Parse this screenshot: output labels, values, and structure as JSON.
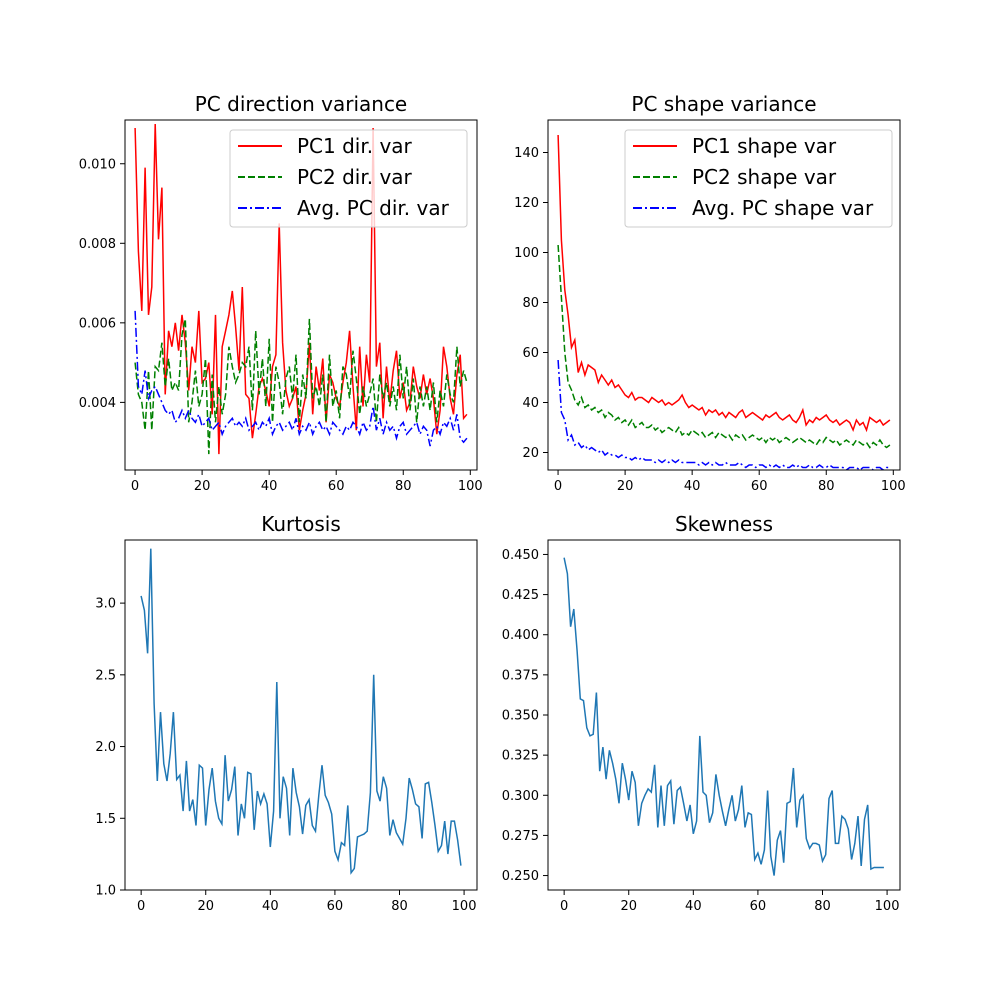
{
  "chart_data": [
    {
      "type": "line",
      "title": "PC direction variance",
      "xlabel": "",
      "ylabel": "",
      "xlim": [
        -3,
        102
      ],
      "ylim": [
        0.0023,
        0.0111
      ],
      "xticks": [
        0,
        20,
        40,
        60,
        80,
        100
      ],
      "yticks": [
        0.004,
        0.006,
        0.008,
        0.01
      ],
      "ytick_labels": [
        "0.004",
        "0.006",
        "0.008",
        "0.010"
      ],
      "grid": false,
      "legend": "upper right",
      "series": [
        {
          "name": "PC1 dir. var",
          "color": "#ff0000",
          "linestyle": "solid",
          "values": [
            0.0109,
            0.0078,
            0.0063,
            0.0099,
            0.0062,
            0.0069,
            0.011,
            0.0081,
            0.0094,
            0.0042,
            0.0058,
            0.0054,
            0.006,
            0.0053,
            0.0062,
            0.0055,
            0.0043,
            0.0054,
            0.005,
            0.0063,
            0.0045,
            0.0046,
            0.005,
            0.0037,
            0.0062,
            0.0027,
            0.0054,
            0.0058,
            0.0062,
            0.0068,
            0.0059,
            0.0048,
            0.0069,
            0.0042,
            0.0041,
            0.0031,
            0.0037,
            0.0044,
            0.0046,
            0.0043,
            0.0039,
            0.0049,
            0.0052,
            0.0085,
            0.0055,
            0.0043,
            0.0039,
            0.0041,
            0.0044,
            0.0033,
            0.0038,
            0.0042,
            0.0055,
            0.0037,
            0.0049,
            0.0043,
            0.0051,
            0.0035,
            0.0047,
            0.0045,
            0.0041,
            0.0039,
            0.0045,
            0.005,
            0.0058,
            0.0044,
            0.0033,
            0.0054,
            0.0039,
            0.0052,
            0.0045,
            0.0109,
            0.0049,
            0.0055,
            0.0036,
            0.0049,
            0.004,
            0.0048,
            0.0053,
            0.0041,
            0.0045,
            0.0038,
            0.004,
            0.0049,
            0.0044,
            0.0041,
            0.0047,
            0.0042,
            0.0046,
            0.0041,
            0.0032,
            0.0038,
            0.0054,
            0.0049,
            0.0041,
            0.0037,
            0.0047,
            0.0052,
            0.0036,
            0.0037
          ]
        },
        {
          "name": "PC2 dir. var",
          "color": "#008000",
          "linestyle": "dashed",
          "values": [
            0.005,
            0.0042,
            0.004,
            0.0033,
            0.0048,
            0.0033,
            0.0049,
            0.0048,
            0.0055,
            0.0044,
            0.0051,
            0.0043,
            0.0045,
            0.0043,
            0.0057,
            0.0061,
            0.0035,
            0.004,
            0.0048,
            0.0039,
            0.0042,
            0.0051,
            0.0027,
            0.0047,
            0.0035,
            0.0044,
            0.0037,
            0.0042,
            0.0054,
            0.0049,
            0.0045,
            0.0047,
            0.005,
            0.0049,
            0.0054,
            0.0038,
            0.0058,
            0.0042,
            0.0051,
            0.0039,
            0.0056,
            0.0035,
            0.0049,
            0.0045,
            0.0037,
            0.0046,
            0.0049,
            0.0041,
            0.0052,
            0.0035,
            0.0047,
            0.0041,
            0.0061,
            0.0041,
            0.0044,
            0.0039,
            0.0047,
            0.0035,
            0.0052,
            0.0039,
            0.0043,
            0.0036,
            0.0049,
            0.0047,
            0.0041,
            0.0053,
            0.0046,
            0.0037,
            0.0044,
            0.0039,
            0.0042,
            0.0046,
            0.0035,
            0.0047,
            0.0041,
            0.0045,
            0.0039,
            0.0044,
            0.0038,
            0.0052,
            0.0041,
            0.0049,
            0.0038,
            0.0046,
            0.0035,
            0.0044,
            0.0039,
            0.0044,
            0.0038,
            0.0045,
            0.0035,
            0.0043,
            0.0039,
            0.0047,
            0.0042,
            0.004,
            0.0054,
            0.0044,
            0.0048,
            0.0045
          ]
        },
        {
          "name": "Avg. PC dir. var",
          "color": "#0000ff",
          "linestyle": "dashdot",
          "values": [
            0.0063,
            0.0044,
            0.0042,
            0.0048,
            0.0041,
            0.0043,
            0.0044,
            0.0042,
            0.004,
            0.0038,
            0.0037,
            0.0038,
            0.0035,
            0.0036,
            0.0038,
            0.0036,
            0.0038,
            0.0036,
            0.0035,
            0.0037,
            0.0034,
            0.0035,
            0.0036,
            0.0033,
            0.0034,
            0.0035,
            0.0032,
            0.0034,
            0.0035,
            0.0036,
            0.0034,
            0.0035,
            0.0034,
            0.0036,
            0.0033,
            0.0034,
            0.0035,
            0.0033,
            0.0035,
            0.0034,
            0.0036,
            0.0032,
            0.0034,
            0.0035,
            0.0033,
            0.0034,
            0.0035,
            0.0033,
            0.0036,
            0.0032,
            0.0034,
            0.0033,
            0.0035,
            0.0032,
            0.0034,
            0.0035,
            0.0033,
            0.0034,
            0.0032,
            0.0035,
            0.0034,
            0.0033,
            0.0032,
            0.0034,
            0.0033,
            0.0035,
            0.0034,
            0.0032,
            0.0035,
            0.0033,
            0.0034,
            0.0039,
            0.0033,
            0.0036,
            0.0032,
            0.0035,
            0.0033,
            0.0034,
            0.0031,
            0.0034,
            0.0035,
            0.0032,
            0.0033,
            0.0034,
            0.0035,
            0.0032,
            0.0034,
            0.0033,
            0.0029,
            0.0033,
            0.0034,
            0.0032,
            0.0035,
            0.0034,
            0.0036,
            0.0033,
            0.0037,
            0.0031,
            0.003,
            0.0031
          ]
        }
      ]
    },
    {
      "type": "line",
      "title": "PC shape variance",
      "xlabel": "",
      "ylabel": "",
      "xlim": [
        -3,
        102
      ],
      "ylim": [
        13,
        153
      ],
      "xticks": [
        0,
        20,
        40,
        60,
        80,
        100
      ],
      "yticks": [
        20,
        40,
        60,
        80,
        100,
        120,
        140
      ],
      "ytick_labels": [
        "20",
        "40",
        "60",
        "80",
        "100",
        "120",
        "140"
      ],
      "grid": false,
      "legend": "upper right",
      "series": [
        {
          "name": "PC1 shape var",
          "color": "#ff0000",
          "linestyle": "solid",
          "values": [
            147,
            105,
            85,
            75,
            62,
            65,
            52,
            56,
            51,
            55,
            54,
            53,
            48,
            51,
            49,
            47,
            49,
            46,
            47,
            45,
            43,
            42,
            44,
            41,
            42,
            42,
            41,
            40,
            42,
            41,
            40,
            41,
            39,
            40,
            39,
            40,
            41,
            43,
            40,
            38,
            39,
            38,
            37,
            38,
            35,
            37,
            36,
            37,
            35,
            36,
            34,
            36,
            35,
            34,
            36,
            37,
            34,
            35,
            36,
            35,
            34,
            33,
            35,
            34,
            35,
            36,
            34,
            33,
            34,
            35,
            33,
            32,
            34,
            37,
            31,
            33,
            32,
            34,
            33,
            34,
            35,
            33,
            32,
            33,
            31,
            32,
            33,
            32,
            29,
            33,
            31,
            32,
            29,
            34,
            33,
            32,
            33,
            31,
            32,
            33
          ]
        },
        {
          "name": "PC2 shape var",
          "color": "#008000",
          "linestyle": "dashed",
          "values": [
            103,
            82,
            60,
            48,
            45,
            41,
            39,
            42,
            38,
            39,
            37,
            38,
            36,
            37,
            34,
            36,
            35,
            33,
            34,
            32,
            33,
            31,
            33,
            30,
            31,
            32,
            30,
            30,
            31,
            29,
            30,
            28,
            29,
            30,
            29,
            28,
            30,
            27,
            28,
            27,
            29,
            28,
            27,
            28,
            26,
            27,
            28,
            26,
            28,
            27,
            26,
            27,
            25,
            27,
            26,
            27,
            25,
            26,
            27,
            26,
            25,
            26,
            24,
            26,
            25,
            26,
            24,
            25,
            26,
            25,
            24,
            25,
            26,
            25,
            24,
            25,
            24,
            23,
            25,
            24,
            26,
            25,
            24,
            25,
            23,
            24,
            25,
            24,
            23,
            25,
            24,
            23,
            24,
            22,
            24,
            23,
            25,
            23,
            22,
            23
          ]
        },
        {
          "name": "Avg. PC shape var",
          "color": "#0000ff",
          "linestyle": "dashdot",
          "values": [
            57,
            36,
            33,
            25,
            27,
            23,
            24,
            22,
            23,
            21,
            22,
            21,
            20,
            21,
            19,
            20,
            19,
            19,
            18,
            19,
            18,
            18,
            17,
            18,
            17,
            18,
            17,
            17,
            17,
            16,
            17,
            16,
            17,
            16,
            17,
            16,
            17,
            16,
            16,
            16,
            16,
            16,
            15,
            16,
            15,
            16,
            15,
            16,
            15,
            15,
            16,
            15,
            15,
            15,
            16,
            15,
            14,
            15,
            15,
            14,
            15,
            15,
            14,
            15,
            14,
            15,
            14,
            15,
            14,
            14,
            15,
            14,
            15,
            14,
            14,
            15,
            14,
            14,
            15,
            14,
            14,
            15,
            14,
            14,
            14,
            14,
            13,
            14,
            14,
            14,
            13,
            14,
            14,
            14,
            13,
            14,
            14,
            13,
            14,
            14
          ]
        }
      ]
    },
    {
      "type": "line",
      "title": "Kurtosis",
      "xlabel": "",
      "ylabel": "",
      "xlim": [
        -5,
        104
      ],
      "ylim": [
        1.0,
        3.44
      ],
      "xticks": [
        0,
        20,
        40,
        60,
        80,
        100
      ],
      "yticks": [
        1.0,
        1.5,
        2.0,
        2.5,
        3.0
      ],
      "ytick_labels": [
        "1.0",
        "1.5",
        "2.0",
        "2.5",
        "3.0"
      ],
      "grid": false,
      "legend": "none",
      "series": [
        {
          "color": "#1f77b4",
          "linestyle": "solid",
          "values": [
            3.05,
            2.95,
            2.65,
            3.38,
            2.3,
            1.76,
            2.24,
            1.88,
            1.76,
            1.95,
            2.24,
            1.77,
            1.8,
            1.55,
            1.9,
            1.55,
            1.63,
            1.45,
            1.87,
            1.85,
            1.45,
            1.7,
            1.85,
            1.62,
            1.5,
            1.46,
            1.94,
            1.62,
            1.7,
            1.86,
            1.38,
            1.6,
            1.5,
            1.82,
            1.81,
            1.42,
            1.69,
            1.6,
            1.67,
            1.6,
            1.3,
            1.55,
            2.45,
            1.5,
            1.79,
            1.71,
            1.38,
            1.85,
            1.68,
            1.58,
            1.39,
            1.59,
            1.63,
            1.45,
            1.41,
            1.66,
            1.87,
            1.66,
            1.61,
            1.53,
            1.27,
            1.21,
            1.33,
            1.31,
            1.59,
            1.12,
            1.15,
            1.37,
            1.38,
            1.39,
            1.41,
            1.68,
            2.5,
            1.69,
            1.62,
            1.79,
            1.71,
            1.38,
            1.49,
            1.4,
            1.36,
            1.32,
            1.5,
            1.78,
            1.7,
            1.6,
            1.58,
            1.36,
            1.74,
            1.75,
            1.61,
            1.45,
            1.27,
            1.31,
            1.48,
            1.25,
            1.48,
            1.48,
            1.35,
            1.17
          ]
        }
      ]
    },
    {
      "type": "line",
      "title": "Skewness",
      "xlabel": "",
      "ylabel": "",
      "xlim": [
        -5,
        104
      ],
      "ylim": [
        0.241,
        0.459
      ],
      "xticks": [
        0,
        20,
        40,
        60,
        80,
        100
      ],
      "yticks": [
        0.25,
        0.275,
        0.3,
        0.325,
        0.35,
        0.375,
        0.4,
        0.425,
        0.45
      ],
      "ytick_labels": [
        "0.250",
        "0.275",
        "0.300",
        "0.325",
        "0.350",
        "0.375",
        "0.400",
        "0.425",
        "0.450"
      ],
      "grid": false,
      "legend": "none",
      "series": [
        {
          "color": "#1f77b4",
          "linestyle": "solid",
          "values": [
            0.448,
            0.438,
            0.405,
            0.416,
            0.39,
            0.36,
            0.359,
            0.342,
            0.337,
            0.338,
            0.364,
            0.315,
            0.33,
            0.31,
            0.328,
            0.32,
            0.31,
            0.295,
            0.32,
            0.31,
            0.297,
            0.315,
            0.308,
            0.281,
            0.295,
            0.3,
            0.304,
            0.302,
            0.319,
            0.28,
            0.306,
            0.281,
            0.306,
            0.309,
            0.282,
            0.303,
            0.305,
            0.295,
            0.284,
            0.294,
            0.276,
            0.284,
            0.337,
            0.302,
            0.3,
            0.283,
            0.289,
            0.313,
            0.3,
            0.29,
            0.281,
            0.291,
            0.3,
            0.284,
            0.291,
            0.306,
            0.28,
            0.289,
            0.288,
            0.26,
            0.264,
            0.257,
            0.266,
            0.303,
            0.262,
            0.25,
            0.272,
            0.278,
            0.258,
            0.295,
            0.296,
            0.317,
            0.28,
            0.297,
            0.3,
            0.273,
            0.267,
            0.27,
            0.27,
            0.269,
            0.259,
            0.263,
            0.298,
            0.303,
            0.27,
            0.27,
            0.287,
            0.285,
            0.279,
            0.26,
            0.27,
            0.287,
            0.256,
            0.285,
            0.294,
            0.254,
            0.255,
            0.255,
            0.255,
            0.255
          ]
        }
      ]
    }
  ]
}
